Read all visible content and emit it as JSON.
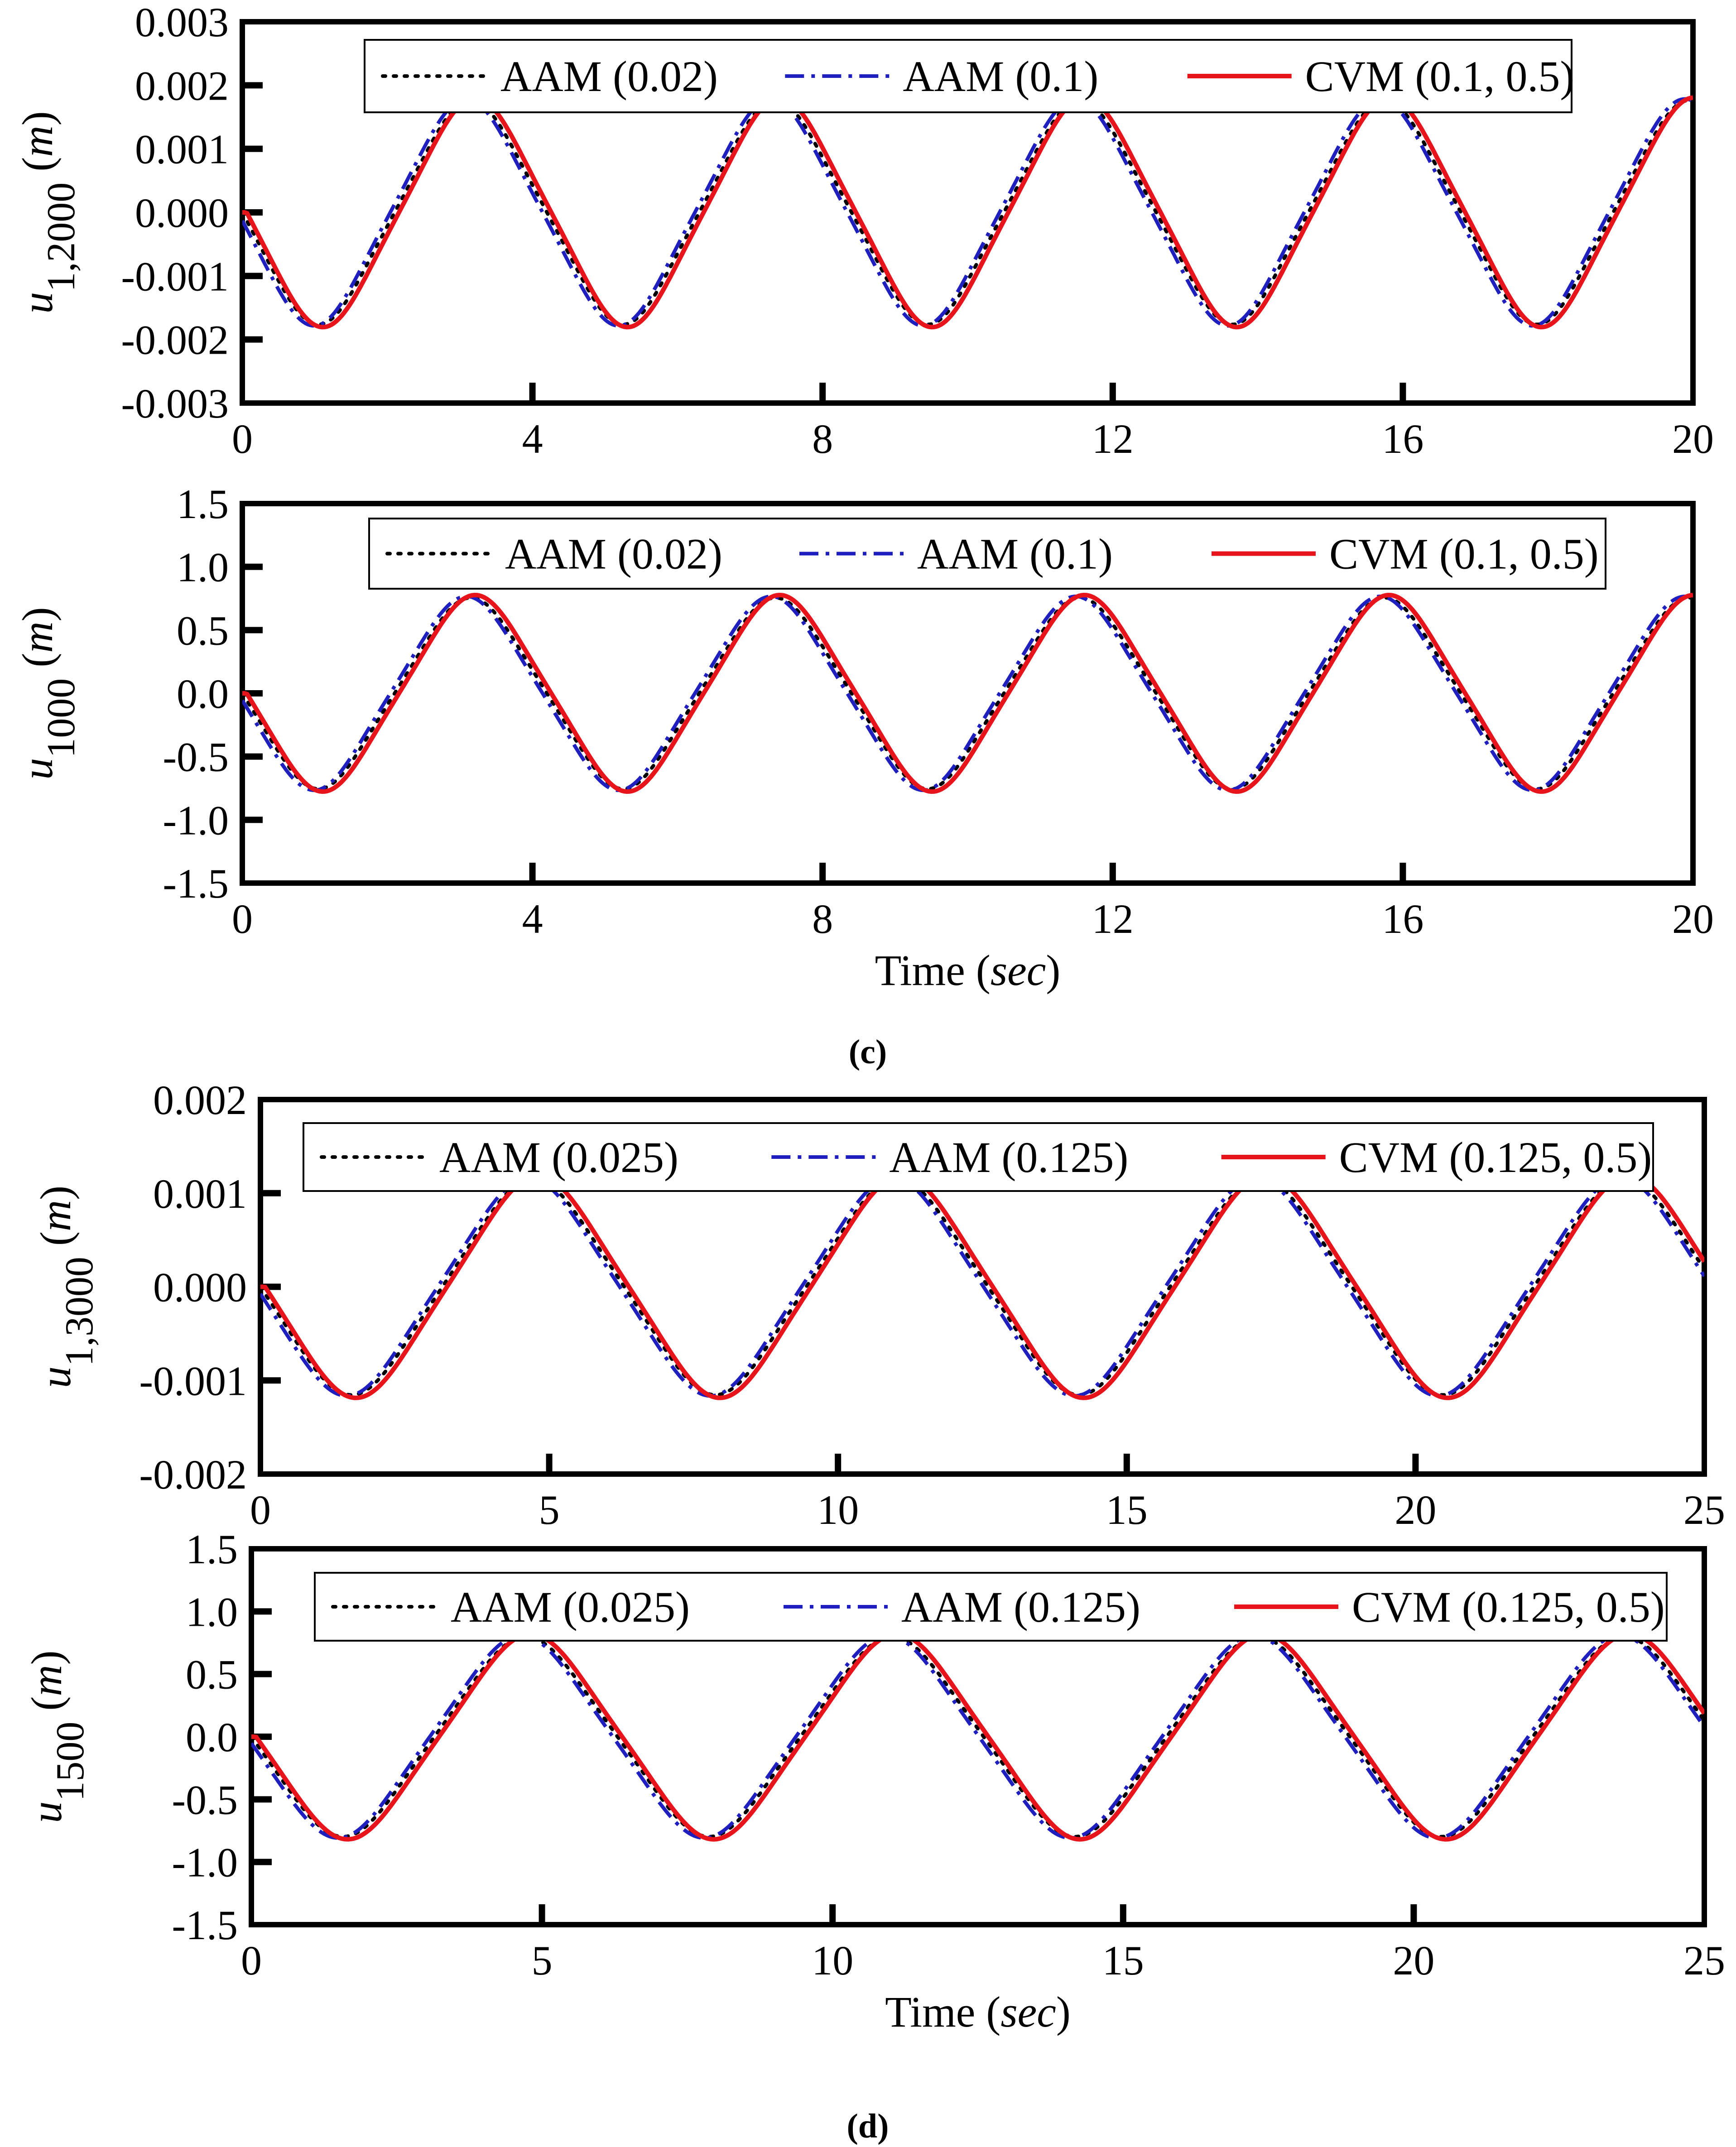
{
  "figure": {
    "panel_c_label": "(c)",
    "panel_d_label": "(d)"
  },
  "colors": {
    "aam_small": "#000000",
    "aam_large": "#1f1fbf",
    "cvm": "#e8141c"
  },
  "chart_data": [
    {
      "id": "c1",
      "type": "line",
      "panel": "c",
      "ylabel": "u 1,2000 (m)",
      "ylabel_main": "u",
      "ylabel_sub": "1,2000",
      "ylabel_unit": "m",
      "xlabel": "",
      "xlim": [
        0,
        20
      ],
      "ylim": [
        -0.003,
        0.003
      ],
      "x_ticks": [
        "0",
        "4",
        "8",
        "12",
        "16",
        "20"
      ],
      "y_ticks": [
        "0.003",
        "0.002",
        "0.001",
        "0.000",
        "-0.001",
        "-0.002",
        "-0.003"
      ],
      "period": 4.2,
      "series": [
        {
          "name": "AAM (0.02)",
          "style": "dotted",
          "color_key": "aam_small",
          "amplitude": 0.00168,
          "phase_shift": 0.0
        },
        {
          "name": "AAM (0.1)",
          "style": "dashdot",
          "color_key": "aam_large",
          "amplitude": 0.0017,
          "phase_shift": -0.06
        },
        {
          "name": "CVM (0.1, 0.5)",
          "style": "solid",
          "color_key": "cvm",
          "amplitude": 0.00172,
          "phase_shift": 0.06
        }
      ]
    },
    {
      "id": "c2",
      "type": "line",
      "panel": "c",
      "ylabel": "u 1000 (m)",
      "ylabel_main": "u",
      "ylabel_sub": "1000",
      "ylabel_unit": "m",
      "xlabel": "Time (sec)",
      "xlim": [
        0,
        20
      ],
      "ylim": [
        -1.5,
        1.5
      ],
      "x_ticks": [
        "0",
        "4",
        "8",
        "12",
        "16",
        "20"
      ],
      "y_ticks": [
        "1.5",
        "1.0",
        "0.5",
        "0.0",
        "-0.5",
        "-1.0",
        "-1.5"
      ],
      "period": 4.2,
      "series": [
        {
          "name": "AAM (0.02)",
          "style": "dotted",
          "color_key": "aam_small",
          "amplitude": 0.72,
          "phase_shift": 0.0
        },
        {
          "name": "AAM (0.1)",
          "style": "dashdot",
          "color_key": "aam_large",
          "amplitude": 0.73,
          "phase_shift": -0.06
        },
        {
          "name": "CVM (0.1, 0.5)",
          "style": "solid",
          "color_key": "cvm",
          "amplitude": 0.74,
          "phase_shift": 0.06
        }
      ]
    },
    {
      "id": "d1",
      "type": "line",
      "panel": "d",
      "ylabel": "u 1,3000 (m)",
      "ylabel_main": "u",
      "ylabel_sub": "1,3000",
      "ylabel_unit": "m",
      "xlabel": "",
      "xlim": [
        0,
        25
      ],
      "ylim": [
        -0.002,
        0.002
      ],
      "x_ticks": [
        "0",
        "5",
        "10",
        "15",
        "20",
        "25"
      ],
      "y_ticks": [
        "0.002",
        "0.001",
        "0.000",
        "-0.001",
        "-0.002"
      ],
      "period": 6.3,
      "series": [
        {
          "name": "AAM (0.025)",
          "style": "dotted",
          "color_key": "aam_small",
          "amplitude": 0.0011,
          "phase_shift": 0.0
        },
        {
          "name": "AAM (0.125)",
          "style": "dashdot",
          "color_key": "aam_large",
          "amplitude": 0.00111,
          "phase_shift": -0.08
        },
        {
          "name": "CVM (0.125, 0.5)",
          "style": "solid",
          "color_key": "cvm",
          "amplitude": 0.00113,
          "phase_shift": 0.08
        }
      ]
    },
    {
      "id": "d2",
      "type": "line",
      "panel": "d",
      "ylabel": "u 1500 (m)",
      "ylabel_main": "u",
      "ylabel_sub": "1500",
      "ylabel_unit": "m",
      "xlabel": "Time (sec)",
      "xlim": [
        0,
        25
      ],
      "ylim": [
        -1.5,
        1.5
      ],
      "x_ticks": [
        "0",
        "5",
        "10",
        "15",
        "20",
        "25"
      ],
      "y_ticks": [
        "1.5",
        "1.0",
        "0.5",
        "0.0",
        "-0.5",
        "-1.0",
        "-1.5"
      ],
      "period": 6.3,
      "series": [
        {
          "name": "AAM (0.025)",
          "style": "dotted",
          "color_key": "aam_small",
          "amplitude": 0.76,
          "phase_shift": 0.0
        },
        {
          "name": "AAM (0.125)",
          "style": "dashdot",
          "color_key": "aam_large",
          "amplitude": 0.77,
          "phase_shift": -0.08
        },
        {
          "name": "CVM (0.125, 0.5)",
          "style": "solid",
          "color_key": "cvm",
          "amplitude": 0.78,
          "phase_shift": 0.08
        }
      ]
    }
  ]
}
